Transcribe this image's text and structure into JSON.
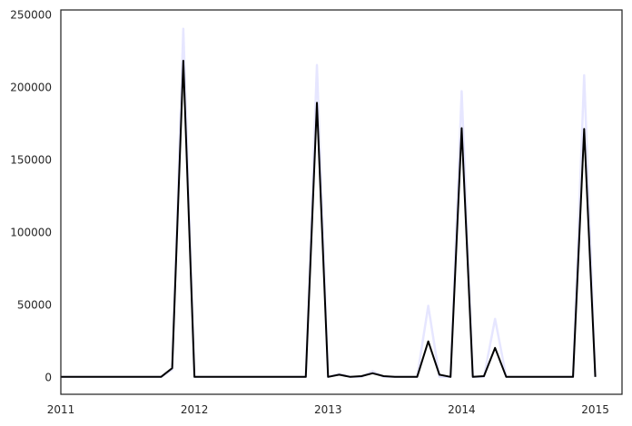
{
  "chart_data": {
    "type": "line",
    "title": "",
    "xlabel": "",
    "ylabel": "",
    "xlim": [
      2011.0,
      2015.2
    ],
    "ylim": [
      -12000,
      253000
    ],
    "grid": false,
    "x_ticks": [
      {
        "value": 2011,
        "label": "2011"
      },
      {
        "value": 2012,
        "label": "2012"
      },
      {
        "value": 2013,
        "label": "2013"
      },
      {
        "value": 2014,
        "label": "2014"
      },
      {
        "value": 2015,
        "label": "2015"
      }
    ],
    "y_ticks": [
      {
        "value": 0,
        "label": "0"
      },
      {
        "value": 50000,
        "label": "50000"
      },
      {
        "value": 100000,
        "label": "100000"
      },
      {
        "value": 150000,
        "label": "150000"
      },
      {
        "value": 200000,
        "label": "200000"
      },
      {
        "value": 250000,
        "label": "250000"
      }
    ],
    "x_dates": [
      "2011-01",
      "2011-02",
      "2011-03",
      "2011-04",
      "2011-05",
      "2011-06",
      "2011-07",
      "2011-08",
      "2011-09",
      "2011-10",
      "2011-11",
      "2011-12",
      "2012-01",
      "2012-02",
      "2012-03",
      "2012-04",
      "2012-05",
      "2012-06",
      "2012-07",
      "2012-08",
      "2012-09",
      "2012-10",
      "2012-11",
      "2012-12",
      "2013-01",
      "2013-02",
      "2013-03",
      "2013-04",
      "2013-05",
      "2013-06",
      "2013-07",
      "2013-08",
      "2013-09",
      "2013-10",
      "2013-11",
      "2013-12",
      "2014-01",
      "2014-02",
      "2014-03",
      "2014-04",
      "2014-05",
      "2014-06",
      "2014-07",
      "2014-08",
      "2014-09",
      "2014-10",
      "2014-11",
      "2014-12",
      "2015-01"
    ],
    "series": [
      {
        "color": "#e6e6ff",
        "values": [
          0,
          0,
          0,
          0,
          0,
          0,
          0,
          0,
          0,
          0,
          5000,
          240000,
          0,
          0,
          0,
          0,
          0,
          0,
          0,
          0,
          0,
          0,
          0,
          215000,
          0,
          2000,
          0,
          0,
          4000,
          0,
          0,
          0,
          0,
          49000,
          0,
          0,
          197000,
          0,
          0,
          40000,
          0,
          0,
          0,
          0,
          0,
          0,
          0,
          208000,
          0
        ]
      },
      {
        "color": "#000000",
        "values": [
          0,
          0,
          0,
          0,
          0,
          0,
          0,
          0,
          0,
          0,
          6000,
          218000,
          0,
          0,
          0,
          0,
          0,
          0,
          0,
          0,
          0,
          0,
          0,
          189000,
          0,
          1500,
          0,
          500,
          2500,
          500,
          0,
          0,
          0,
          24500,
          1500,
          0,
          171500,
          0,
          500,
          20000,
          0,
          0,
          0,
          0,
          0,
          0,
          0,
          171000,
          0
        ]
      }
    ]
  }
}
